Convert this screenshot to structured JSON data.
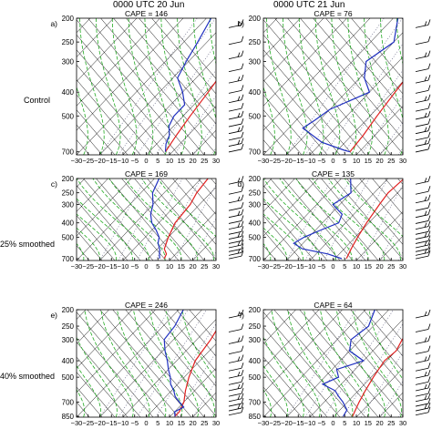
{
  "column_titles": [
    "0000 UTC 20 Jun",
    "0000 UTC 21 Jun"
  ],
  "row_labels": [
    "Control",
    "25% smoothed",
    "40% smoothed"
  ],
  "colors": {
    "temperature": "#e02020",
    "dewpoint": "#2030c0",
    "isotherm": "#000000",
    "dry_adiabat": "#000000",
    "moist_adiabat": "#22aa22",
    "mixing_ratio": "#555577"
  },
  "chart_data": [
    {
      "type": "line",
      "panel": "a)",
      "cape_label": "CAPE = 146",
      "x_ticks": [
        "−30",
        "−25",
        "−20",
        "−15",
        "−10",
        "−5",
        "0",
        "5",
        "10",
        "15",
        "20",
        "25",
        "30"
      ],
      "y_ticks": [
        "200",
        "250",
        "300",
        "400",
        "500",
        "700"
      ],
      "xlim": [
        -30,
        30
      ],
      "ylim": [
        720,
        200
      ],
      "series": [
        {
          "points": [
            [
              -7,
              200
            ],
            [
              -5,
              250
            ],
            [
              -2,
              300
            ],
            [
              1,
              400
            ],
            [
              3,
              500
            ],
            [
              5,
              600
            ],
            [
              7,
              700
            ]
          ]
        },
        {
          "points": [
            [
              -28,
              200
            ],
            [
              -24,
              250
            ],
            [
              -21,
              300
            ],
            [
              -18,
              350
            ],
            [
              -10,
              400
            ],
            [
              -4,
              450
            ],
            [
              -4,
              500
            ],
            [
              -2,
              550
            ],
            [
              2,
              600
            ],
            [
              4,
              650
            ],
            [
              7,
              700
            ]
          ]
        }
      ]
    },
    {
      "type": "line",
      "panel": "b)",
      "cape_label": "CAPE = 76",
      "x_ticks": [
        "−30",
        "−25",
        "−20",
        "−15",
        "−10",
        "−5",
        "0",
        "5",
        "10",
        "15",
        "20",
        "25",
        "30"
      ],
      "y_ticks": [
        "200",
        "250",
        "300",
        "400",
        "500",
        "700"
      ],
      "xlim": [
        -30,
        30
      ],
      "ylim": [
        720,
        200
      ],
      "series": [
        {
          "points": [
            [
              -3,
              200
            ],
            [
              -3,
              250
            ],
            [
              -1,
              300
            ],
            [
              0,
              350
            ],
            [
              1,
              400
            ],
            [
              3,
              500
            ],
            [
              5,
              600
            ],
            [
              6,
              700
            ]
          ]
        },
        {
          "points": [
            [
              -28,
              200
            ],
            [
              -20,
              250
            ],
            [
              -24,
              300
            ],
            [
              -18,
              350
            ],
            [
              -10,
              400
            ],
            [
              -20,
              470
            ],
            [
              -22,
              520
            ],
            [
              -24,
              560
            ],
            [
              -10,
              640
            ],
            [
              3,
              690
            ],
            [
              6,
              700
            ]
          ]
        }
      ]
    },
    {
      "type": "line",
      "panel": "c)",
      "cape_label": "CAPE = 169",
      "x_ticks": [
        "−30",
        "−25",
        "−20",
        "−15",
        "−10",
        "−5",
        "0",
        "5",
        "10",
        "15",
        "20",
        "25",
        "30"
      ],
      "y_ticks": [
        "200",
        "250",
        "300",
        "400",
        "500",
        "700"
      ],
      "xlim": [
        -30,
        30
      ],
      "ylim": [
        720,
        200
      ],
      "series": [
        {
          "points": [
            [
              -7,
              200
            ],
            [
              -6,
              250
            ],
            [
              -4,
              300
            ],
            [
              -3,
              400
            ],
            [
              0,
              500
            ],
            [
              3,
              600
            ],
            [
              6,
              650
            ],
            [
              7,
              700
            ]
          ]
        },
        {
          "points": [
            [
              -28,
              200
            ],
            [
              -25,
              250
            ],
            [
              -20,
              300
            ],
            [
              -17,
              350
            ],
            [
              -13,
              400
            ],
            [
              -8,
              450
            ],
            [
              -4,
              500
            ],
            [
              -2,
              550
            ],
            [
              1,
              600
            ],
            [
              3,
              650
            ],
            [
              5,
              700
            ]
          ]
        }
      ]
    },
    {
      "type": "line",
      "panel": "d)",
      "cape_label": "CAPE = 135",
      "x_ticks": [
        "−30",
        "−25",
        "−20",
        "−15",
        "−10",
        "−5",
        "0",
        "5",
        "10",
        "15",
        "20",
        "25",
        "30"
      ],
      "y_ticks": [
        "200",
        "250",
        "300",
        "400",
        "500",
        "700"
      ],
      "xlim": [
        -30,
        30
      ],
      "ylim": [
        720,
        200
      ],
      "series": [
        {
          "points": [
            [
              -3,
              200
            ],
            [
              -4,
              250
            ],
            [
              -3,
              300
            ],
            [
              -1,
              400
            ],
            [
              1,
              500
            ],
            [
              3,
              600
            ],
            [
              5,
              700
            ]
          ]
        },
        {
          "points": [
            [
              -26,
              200
            ],
            [
              -20,
              250
            ],
            [
              -23,
              300
            ],
            [
              -15,
              350
            ],
            [
              -13,
              400
            ],
            [
              -18,
              450
            ],
            [
              -22,
              500
            ],
            [
              -24,
              550
            ],
            [
              -18,
              600
            ],
            [
              -5,
              650
            ],
            [
              3,
              700
            ]
          ]
        }
      ]
    },
    {
      "type": "line",
      "panel": "e)",
      "cape_label": "CAPE = 246",
      "x_ticks": [
        "−30",
        "−25",
        "−20",
        "−15",
        "−10",
        "−5",
        "0",
        "5",
        "10",
        "15",
        "20",
        "25",
        "30"
      ],
      "y_ticks": [
        "200",
        "250",
        "300",
        "400",
        "500",
        "700",
        "850"
      ],
      "xlim": [
        -30,
        30
      ],
      "ylim": [
        860,
        200
      ],
      "series": [
        {
          "points": [
            [
              -6,
              200
            ],
            [
              -6,
              250
            ],
            [
              -4,
              300
            ],
            [
              -2,
              400
            ],
            [
              2,
              500
            ],
            [
              6,
              600
            ],
            [
              10,
              700
            ],
            [
              12,
              800
            ],
            [
              12,
              850
            ]
          ]
        },
        {
          "points": [
            [
              -28,
              200
            ],
            [
              -25,
              250
            ],
            [
              -24,
              300
            ],
            [
              -19,
              350
            ],
            [
              -14,
              400
            ],
            [
              -10,
              450
            ],
            [
              -6,
              500
            ],
            [
              -3,
              550
            ],
            [
              1,
              600
            ],
            [
              4,
              650
            ],
            [
              8,
              700
            ],
            [
              12,
              750
            ],
            [
              10,
              800
            ],
            [
              12,
              850
            ]
          ]
        }
      ]
    },
    {
      "type": "line",
      "panel": "f)",
      "cape_label": "CAPE = 64",
      "x_ticks": [
        "−30",
        "−25",
        "−20",
        "−15",
        "−10",
        "−5",
        "0",
        "5",
        "10",
        "15",
        "20",
        "25",
        "30"
      ],
      "y_ticks": [
        "200",
        "250",
        "300",
        "400",
        "500",
        "700",
        "850"
      ],
      "xlim": [
        -30,
        30
      ],
      "ylim": [
        860,
        200
      ],
      "series": [
        {
          "points": [
            [
              -5,
              200
            ],
            [
              -3,
              250
            ],
            [
              -2,
              300
            ],
            [
              0,
              350
            ],
            [
              -1,
              400
            ],
            [
              1,
              500
            ],
            [
              3,
              600
            ],
            [
              5,
              700
            ],
            [
              8,
              850
            ]
          ]
        },
        {
          "points": [
            [
              -26,
              200
            ],
            [
              -22,
              250
            ],
            [
              -24,
              300
            ],
            [
              -20,
              350
            ],
            [
              -10,
              400
            ],
            [
              -18,
              450
            ],
            [
              -14,
              500
            ],
            [
              -18,
              550
            ],
            [
              -10,
              600
            ],
            [
              -6,
              650
            ],
            [
              -2,
              700
            ],
            [
              3,
              780
            ],
            [
              4,
              850
            ]
          ]
        }
      ]
    }
  ]
}
